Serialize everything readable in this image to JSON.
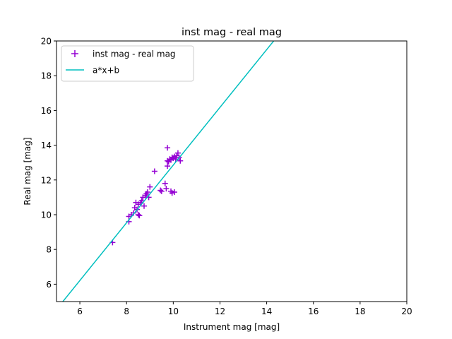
{
  "chart_data": {
    "type": "scatter",
    "title": "inst mag - real mag",
    "xlabel": "Instrument mag [mag]",
    "ylabel": "Real mag [mag]",
    "xlim": [
      5,
      20
    ],
    "ylim": [
      5,
      20
    ],
    "xticks": [
      6,
      8,
      10,
      12,
      14,
      16,
      18,
      20
    ],
    "yticks": [
      6,
      8,
      10,
      12,
      14,
      16,
      18,
      20
    ],
    "grid": false,
    "legend_position": "top-left",
    "series": [
      {
        "name": "inst mag - real mag",
        "kind": "scatter",
        "marker": "plus",
        "color": "#9400d3",
        "points": [
          [
            7.4,
            8.4
          ],
          [
            8.1,
            9.6
          ],
          [
            8.1,
            9.9
          ],
          [
            8.2,
            10.0
          ],
          [
            8.3,
            10.1
          ],
          [
            8.35,
            10.4
          ],
          [
            8.4,
            10.7
          ],
          [
            8.45,
            10.3
          ],
          [
            8.5,
            10.0
          ],
          [
            8.55,
            9.95
          ],
          [
            8.5,
            10.6
          ],
          [
            8.6,
            10.7
          ],
          [
            8.65,
            10.8
          ],
          [
            8.7,
            11.0
          ],
          [
            8.75,
            10.5
          ],
          [
            8.8,
            11.1
          ],
          [
            8.85,
            11.2
          ],
          [
            8.9,
            11.3
          ],
          [
            8.95,
            11.0
          ],
          [
            9.0,
            11.6
          ],
          [
            9.2,
            12.5
          ],
          [
            9.45,
            11.4
          ],
          [
            9.5,
            11.35
          ],
          [
            9.65,
            11.8
          ],
          [
            9.7,
            11.5
          ],
          [
            9.75,
            13.85
          ],
          [
            9.75,
            12.8
          ],
          [
            9.75,
            13.1
          ],
          [
            9.8,
            13.05
          ],
          [
            9.85,
            13.2
          ],
          [
            9.9,
            13.15
          ],
          [
            9.9,
            11.35
          ],
          [
            9.95,
            13.3
          ],
          [
            9.95,
            11.25
          ],
          [
            10.0,
            13.25
          ],
          [
            10.05,
            11.3
          ],
          [
            10.05,
            13.35
          ],
          [
            10.1,
            13.2
          ],
          [
            10.15,
            13.4
          ],
          [
            10.2,
            13.55
          ],
          [
            10.25,
            13.3
          ],
          [
            10.3,
            13.1
          ]
        ]
      },
      {
        "name": "a*x+b",
        "kind": "line",
        "color": "#00bfbf",
        "points": [
          [
            5.0,
            4.55
          ],
          [
            14.3,
            20.0
          ]
        ]
      }
    ]
  }
}
